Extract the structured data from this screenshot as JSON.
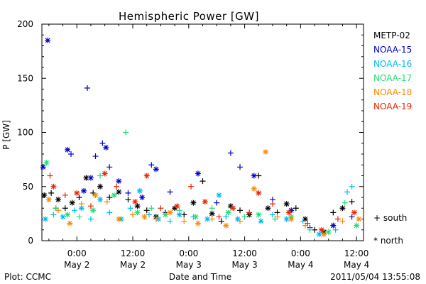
{
  "chart_data": {
    "type": "scatter",
    "title": "Hemispheric Power [GW]",
    "ylabel": "P [GW]",
    "xlabel": "Date and Time",
    "ylim": [
      0,
      200
    ],
    "yticks": [
      0,
      50,
      100,
      150,
      200
    ],
    "xlim": [
      "2011-05-01 16:30",
      "2011-05-04 13:30"
    ],
    "xticks": [
      {
        "time": "2011-05-02 00:00",
        "hour": "0:00",
        "day": "May 2"
      },
      {
        "time": "2011-05-02 12:00",
        "hour": "12:00",
        "day": "May 2"
      },
      {
        "time": "2011-05-03 00:00",
        "hour": "0:00",
        "day": "May 3"
      },
      {
        "time": "2011-05-03 12:00",
        "hour": "12:00",
        "day": "May 3"
      },
      {
        "time": "2011-05-04 00:00",
        "hour": "0:00",
        "day": "May 4"
      },
      {
        "time": "2011-05-04 12:00",
        "hour": "12:00",
        "day": "May 4"
      }
    ],
    "legend": {
      "placement": "right",
      "south_label": "+ south",
      "north_label": "* north"
    },
    "series": [
      {
        "name": "METP-02",
        "color": "#000000",
        "points": [
          [
            "2011-05-01 17:00",
            42,
            "n"
          ],
          [
            "2011-05-01 18:30",
            44,
            "s"
          ],
          [
            "2011-05-01 20:00",
            38,
            "n"
          ],
          [
            "2011-05-01 21:30",
            30,
            "s"
          ],
          [
            "2011-05-01 23:00",
            35,
            "n"
          ],
          [
            "2011-05-02 00:30",
            40,
            "s"
          ],
          [
            "2011-05-02 02:00",
            58,
            "n"
          ],
          [
            "2011-05-02 03:30",
            44,
            "s"
          ],
          [
            "2011-05-02 05:00",
            50,
            "n"
          ],
          [
            "2011-05-02 07:00",
            40,
            "s"
          ],
          [
            "2011-05-02 09:00",
            45,
            "n"
          ],
          [
            "2011-05-02 11:00",
            38,
            "s"
          ],
          [
            "2011-05-02 13:00",
            32,
            "n"
          ],
          [
            "2011-05-02 15:00",
            28,
            "s"
          ],
          [
            "2011-05-02 17:00",
            22,
            "n"
          ],
          [
            "2011-05-02 19:00",
            26,
            "s"
          ],
          [
            "2011-05-02 21:00",
            30,
            "n"
          ],
          [
            "2011-05-02 23:00",
            24,
            "s"
          ],
          [
            "2011-05-03 01:00",
            35,
            "n"
          ],
          [
            "2011-05-03 03:00",
            55,
            "s"
          ],
          [
            "2011-05-03 05:00",
            25,
            "n"
          ],
          [
            "2011-05-03 07:00",
            18,
            "s"
          ],
          [
            "2011-05-03 09:00",
            32,
            "n"
          ],
          [
            "2011-05-03 11:00",
            28,
            "s"
          ],
          [
            "2011-05-03 13:00",
            24,
            "n"
          ],
          [
            "2011-05-03 15:00",
            60,
            "s"
          ],
          [
            "2011-05-03 17:00",
            30,
            "n"
          ],
          [
            "2011-05-03 19:00",
            26,
            "s"
          ],
          [
            "2011-05-03 21:00",
            34,
            "n"
          ],
          [
            "2011-05-03 23:00",
            30,
            "s"
          ],
          [
            "2011-05-04 01:00",
            20,
            "n"
          ],
          [
            "2011-05-04 03:00",
            10,
            "s"
          ],
          [
            "2011-05-04 05:00",
            8,
            "n"
          ],
          [
            "2011-05-04 07:00",
            26,
            "s"
          ],
          [
            "2011-05-04 09:00",
            30,
            "n"
          ],
          [
            "2011-05-04 11:00",
            36,
            "s"
          ]
        ]
      },
      {
        "name": "NOAA-15",
        "color": "#0000cc",
        "points": [
          [
            "2011-05-01 16:45",
            68,
            "n"
          ],
          [
            "2011-05-01 17:45",
            185,
            "n"
          ],
          [
            "2011-05-01 19:30",
            30,
            "s"
          ],
          [
            "2011-05-01 22:00",
            84,
            "n"
          ],
          [
            "2011-05-01 22:45",
            80,
            "s"
          ],
          [
            "2011-05-02 01:30",
            46,
            "n"
          ],
          [
            "2011-05-02 02:15",
            141,
            "s"
          ],
          [
            "2011-05-02 03:00",
            58,
            "n"
          ],
          [
            "2011-05-02 04:00",
            78,
            "s"
          ],
          [
            "2011-05-02 05:30",
            90,
            "s"
          ],
          [
            "2011-05-02 06:15",
            86,
            "n"
          ],
          [
            "2011-05-02 07:00",
            68,
            "s"
          ],
          [
            "2011-05-02 09:00",
            55,
            "n"
          ],
          [
            "2011-05-02 11:00",
            44,
            "s"
          ],
          [
            "2011-05-02 14:00",
            40,
            "n"
          ],
          [
            "2011-05-02 16:00",
            70,
            "s"
          ],
          [
            "2011-05-02 17:00",
            66,
            "n"
          ],
          [
            "2011-05-02 20:00",
            45,
            "s"
          ],
          [
            "2011-05-03 02:00",
            62,
            "n"
          ],
          [
            "2011-05-03 06:00",
            35,
            "s"
          ],
          [
            "2011-05-03 09:00",
            81,
            "s"
          ],
          [
            "2011-05-03 11:00",
            68,
            "s"
          ],
          [
            "2011-05-03 14:00",
            60,
            "n"
          ],
          [
            "2011-05-03 18:00",
            38,
            "s"
          ],
          [
            "2011-05-03 22:00",
            28,
            "n"
          ],
          [
            "2011-05-04 02:00",
            12,
            "s"
          ],
          [
            "2011-05-04 07:00",
            14,
            "n"
          ],
          [
            "2011-05-04 11:00",
            22,
            "s"
          ]
        ]
      },
      {
        "name": "NOAA-16",
        "color": "#00bbee",
        "points": [
          [
            "2011-05-01 17:15",
            20,
            "n"
          ],
          [
            "2011-05-01 19:00",
            24,
            "s"
          ],
          [
            "2011-05-01 21:00",
            22,
            "n"
          ],
          [
            "2011-05-01 23:30",
            28,
            "s"
          ],
          [
            "2011-05-02 01:00",
            30,
            "n"
          ],
          [
            "2011-05-02 03:00",
            20,
            "s"
          ],
          [
            "2011-05-02 05:00",
            38,
            "n"
          ],
          [
            "2011-05-02 07:00",
            26,
            "s"
          ],
          [
            "2011-05-02 09:30",
            20,
            "n"
          ],
          [
            "2011-05-02 11:30",
            30,
            "s"
          ],
          [
            "2011-05-02 13:30",
            46,
            "n"
          ],
          [
            "2011-05-02 15:30",
            24,
            "s"
          ],
          [
            "2011-05-02 17:30",
            20,
            "n"
          ],
          [
            "2011-05-02 20:00",
            18,
            "s"
          ],
          [
            "2011-05-02 22:00",
            24,
            "n"
          ],
          [
            "2011-05-03 01:00",
            22,
            "s"
          ],
          [
            "2011-05-03 04:00",
            20,
            "n"
          ],
          [
            "2011-05-03 06:30",
            42,
            "n"
          ],
          [
            "2011-05-03 08:00",
            22,
            "s"
          ],
          [
            "2011-05-03 10:30",
            20,
            "n"
          ],
          [
            "2011-05-03 13:00",
            26,
            "s"
          ],
          [
            "2011-05-03 15:30",
            18,
            "n"
          ],
          [
            "2011-05-03 18:00",
            24,
            "s"
          ],
          [
            "2011-05-03 21:00",
            20,
            "n"
          ],
          [
            "2011-05-04 00:30",
            18,
            "s"
          ],
          [
            "2011-05-04 04:00",
            6,
            "n"
          ],
          [
            "2011-05-04 07:30",
            10,
            "s"
          ],
          [
            "2011-05-04 10:00",
            45,
            "s"
          ],
          [
            "2011-05-04 11:00",
            50,
            "s"
          ]
        ]
      },
      {
        "name": "NOAA-17",
        "color": "#22dd77",
        "points": [
          [
            "2011-05-01 17:30",
            72,
            "n"
          ],
          [
            "2011-05-01 19:30",
            30,
            "s"
          ],
          [
            "2011-05-01 22:00",
            24,
            "n"
          ],
          [
            "2011-05-02 00:30",
            22,
            "s"
          ],
          [
            "2011-05-02 03:30",
            28,
            "n"
          ],
          [
            "2011-05-02 05:00",
            60,
            "s"
          ],
          [
            "2011-05-02 08:00",
            42,
            "n"
          ],
          [
            "2011-05-02 10:30",
            100,
            "s"
          ],
          [
            "2011-05-02 13:00",
            26,
            "n"
          ],
          [
            "2011-05-02 16:00",
            30,
            "s"
          ],
          [
            "2011-05-02 19:00",
            24,
            "n"
          ],
          [
            "2011-05-02 22:00",
            28,
            "s"
          ],
          [
            "2011-05-03 01:30",
            22,
            "n"
          ],
          [
            "2011-05-03 05:00",
            30,
            "s"
          ],
          [
            "2011-05-03 08:30",
            26,
            "n"
          ],
          [
            "2011-05-03 12:00",
            22,
            "s"
          ],
          [
            "2011-05-03 15:00",
            24,
            "n"
          ],
          [
            "2011-05-03 18:30",
            20,
            "s"
          ],
          [
            "2011-05-03 22:00",
            22,
            "n"
          ],
          [
            "2011-05-04 02:00",
            10,
            "s"
          ],
          [
            "2011-05-04 06:00",
            8,
            "n"
          ],
          [
            "2011-05-04 09:30",
            35,
            "s"
          ],
          [
            "2011-05-04 12:00",
            14,
            "n"
          ]
        ]
      },
      {
        "name": "NOAA-18",
        "color": "#ff8800",
        "points": [
          [
            "2011-05-01 18:00",
            38,
            "n"
          ],
          [
            "2011-05-01 20:00",
            28,
            "s"
          ],
          [
            "2011-05-01 22:30",
            16,
            "n"
          ],
          [
            "2011-05-02 01:00",
            34,
            "s"
          ],
          [
            "2011-05-02 04:00",
            42,
            "n"
          ],
          [
            "2011-05-02 06:30",
            36,
            "s"
          ],
          [
            "2011-05-02 09:00",
            20,
            "n"
          ],
          [
            "2011-05-02 12:00",
            24,
            "s"
          ],
          [
            "2011-05-02 14:30",
            22,
            "n"
          ],
          [
            "2011-05-02 17:00",
            20,
            "s"
          ],
          [
            "2011-05-02 20:00",
            26,
            "n"
          ],
          [
            "2011-05-02 23:00",
            18,
            "s"
          ],
          [
            "2011-05-03 02:00",
            16,
            "n"
          ],
          [
            "2011-05-03 05:00",
            20,
            "s"
          ],
          [
            "2011-05-03 08:00",
            14,
            "n"
          ],
          [
            "2011-05-03 11:00",
            18,
            "s"
          ],
          [
            "2011-05-03 14:00",
            48,
            "n"
          ],
          [
            "2011-05-03 16:30",
            82,
            "n"
          ],
          [
            "2011-05-03 19:00",
            22,
            "s"
          ],
          [
            "2011-05-03 22:00",
            20,
            "n"
          ],
          [
            "2011-05-04 01:00",
            14,
            "s"
          ],
          [
            "2011-05-04 05:00",
            6,
            "n"
          ],
          [
            "2011-05-04 09:00",
            18,
            "s"
          ],
          [
            "2011-05-04 12:30",
            20,
            "n"
          ]
        ]
      },
      {
        "name": "NOAA-19",
        "color": "#ee2200",
        "points": [
          [
            "2011-05-01 18:15",
            60,
            "s"
          ],
          [
            "2011-05-01 19:00",
            50,
            "n"
          ],
          [
            "2011-05-01 21:30",
            42,
            "s"
          ],
          [
            "2011-05-02 00:00",
            44,
            "n"
          ],
          [
            "2011-05-02 03:00",
            32,
            "s"
          ],
          [
            "2011-05-02 06:00",
            62,
            "n"
          ],
          [
            "2011-05-02 08:30",
            50,
            "s"
          ],
          [
            "2011-05-02 12:30",
            36,
            "n"
          ],
          [
            "2011-05-02 15:00",
            60,
            "n"
          ],
          [
            "2011-05-02 18:00",
            30,
            "s"
          ],
          [
            "2011-05-02 21:30",
            32,
            "n"
          ],
          [
            "2011-05-03 00:30",
            50,
            "s"
          ],
          [
            "2011-05-03 03:30",
            36,
            "n"
          ],
          [
            "2011-05-03 06:30",
            22,
            "s"
          ],
          [
            "2011-05-03 09:30",
            30,
            "n"
          ],
          [
            "2011-05-03 13:00",
            26,
            "s"
          ],
          [
            "2011-05-03 15:00",
            44,
            "n"
          ],
          [
            "2011-05-03 18:00",
            34,
            "s"
          ],
          [
            "2011-05-03 21:30",
            26,
            "n"
          ],
          [
            "2011-05-04 01:30",
            16,
            "s"
          ],
          [
            "2011-05-04 04:30",
            10,
            "n"
          ],
          [
            "2011-05-04 08:00",
            20,
            "s"
          ],
          [
            "2011-05-04 11:30",
            26,
            "n"
          ]
        ]
      }
    ]
  },
  "footer": {
    "plot_label": "Plot: CCMC",
    "timestamp": "2011/05/04 13:55:08"
  }
}
